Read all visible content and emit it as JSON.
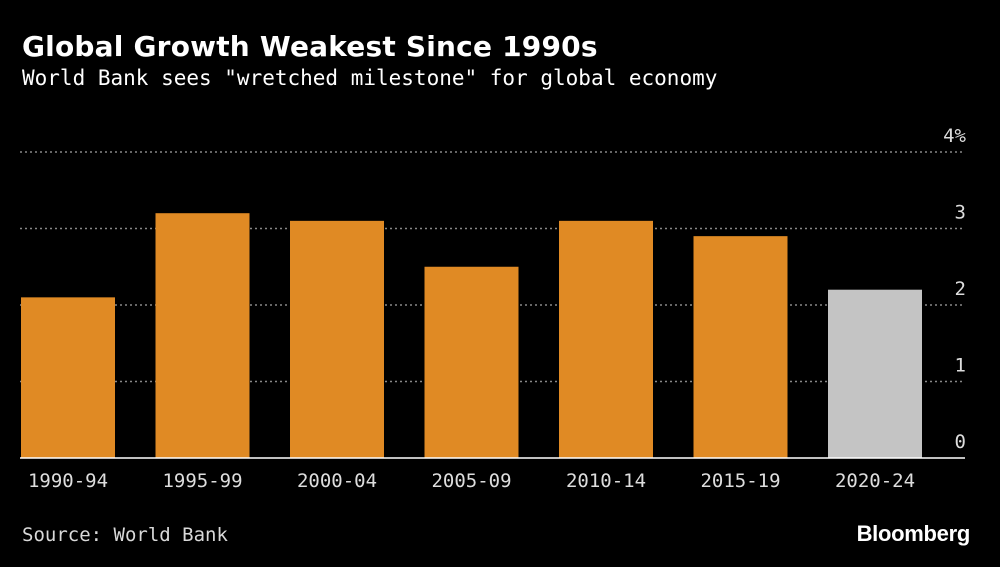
{
  "header": {
    "title": "Global Growth Weakest Since 1990s",
    "subtitle": "World Bank sees \"wretched milestone\" for global economy"
  },
  "footer": {
    "source": "Source: World Bank",
    "brand": "Bloomberg"
  },
  "chart_data": {
    "type": "bar",
    "categories": [
      "1990-94",
      "1995-99",
      "2000-04",
      "2005-09",
      "2010-14",
      "2015-19",
      "2020-24"
    ],
    "values": [
      2.1,
      3.2,
      3.1,
      2.5,
      3.1,
      2.9,
      2.2
    ],
    "bar_colors": [
      "#e08a24",
      "#e08a24",
      "#e08a24",
      "#e08a24",
      "#e08a24",
      "#e08a24",
      "#c4c4c4"
    ],
    "y_ticks": [
      0,
      1,
      2,
      3,
      4
    ],
    "y_tick_labels": [
      "0",
      "1",
      "2",
      "3",
      "4%"
    ],
    "ylim": [
      0,
      4
    ],
    "grid": true,
    "grid_color": "#888888",
    "axis_color": "#ffffff",
    "tick_label_color": "#dddddd"
  }
}
